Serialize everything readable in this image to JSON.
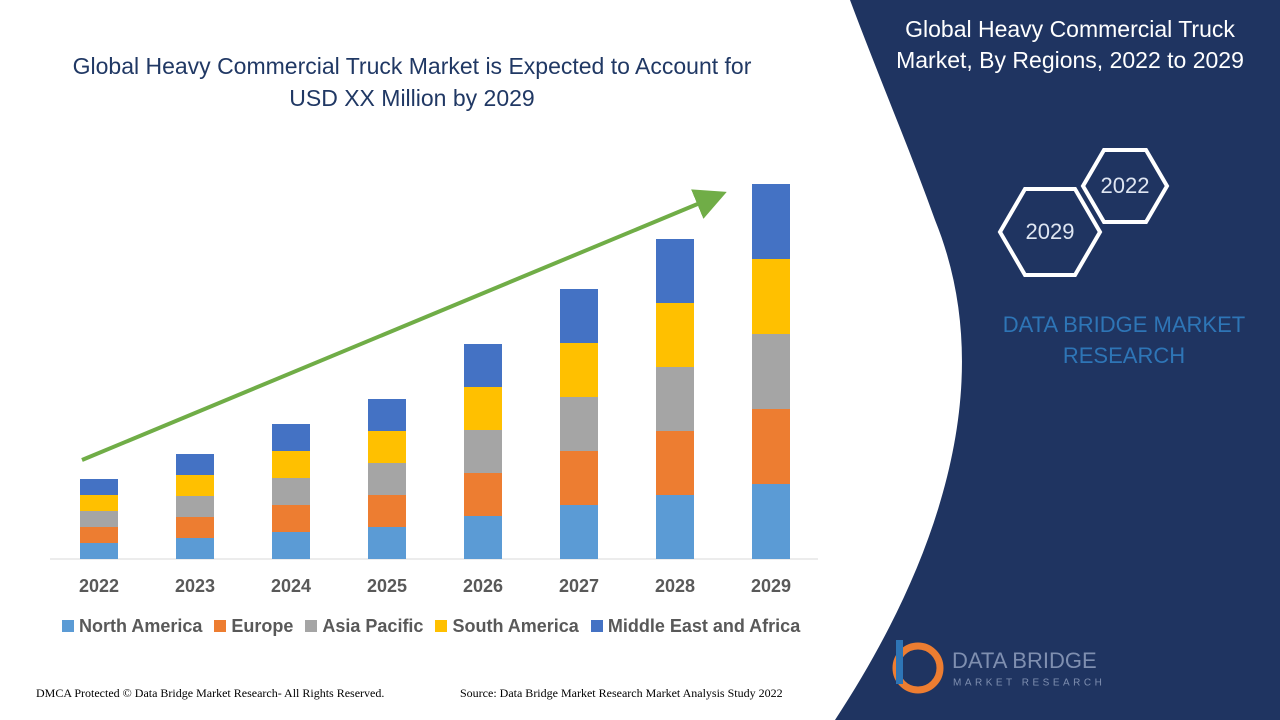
{
  "chart_data": {
    "type": "stacked_bar",
    "title": "Global Heavy Commercial Truck Market is Expected to Account for USD XX Million by 2029",
    "categories": [
      "2022",
      "2023",
      "2024",
      "2025",
      "2026",
      "2027",
      "2028",
      "2029"
    ],
    "series": [
      {
        "name": "North America",
        "color": "#5b9bd5",
        "values": [
          16,
          21,
          27,
          32,
          43,
          54,
          64,
          75
        ]
      },
      {
        "name": "Europe",
        "color": "#ed7d31",
        "values": [
          16,
          21,
          27,
          32,
          43,
          54,
          64,
          75
        ]
      },
      {
        "name": "Asia Pacific",
        "color": "#a5a5a5",
        "values": [
          16,
          21,
          27,
          32,
          43,
          54,
          64,
          75
        ]
      },
      {
        "name": "South America",
        "color": "#ffc000",
        "values": [
          16,
          21,
          27,
          32,
          43,
          54,
          64,
          75
        ]
      },
      {
        "name": "Middle East and Africa",
        "color": "#4472c4",
        "values": [
          16,
          21,
          27,
          32,
          43,
          54,
          64,
          75
        ]
      }
    ]
  },
  "panel": {
    "title": "Global Heavy Commercial Truck Market, By Regions, 2022 to 2029",
    "hex_start": "2022",
    "hex_end": "2029",
    "brand": "DATA BRIDGE MARKET RESEARCH",
    "logo_name": "DATA BRIDGE",
    "logo_sub": "MARKET RESEARCH"
  },
  "footer": {
    "copyright": "DMCA Protected © Data Bridge Market Research- All Rights Reserved.",
    "source": "Source: Data Bridge Market Research Market Analysis Study 2022"
  }
}
